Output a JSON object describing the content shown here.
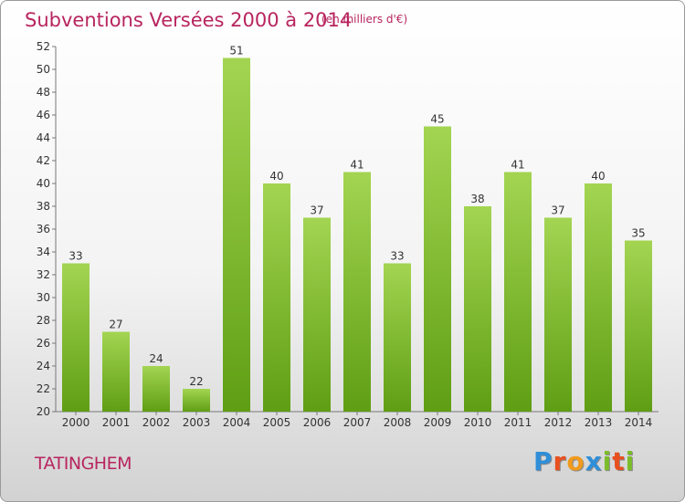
{
  "header": {
    "title": "Subventions Versées 2000 à 2014",
    "unit_note": "(en milliers d'€)"
  },
  "footer": {
    "commune": "TATINGHEM",
    "logo": [
      "P",
      "r",
      "o",
      "x",
      "i",
      "t",
      "i"
    ]
  },
  "colors": {
    "title": "#b8255f",
    "bar_light": "#a3d552",
    "bar_dark": "#5f9e14",
    "logo": [
      "#2f8fd8",
      "#e8501e",
      "#f09a1e",
      "#2f8fd8",
      "#7cbd2a",
      "#e8501e",
      "#7cbd2a"
    ]
  },
  "chart_data": {
    "type": "bar",
    "categories": [
      "2000",
      "2001",
      "2002",
      "2003",
      "2004",
      "2005",
      "2006",
      "2007",
      "2008",
      "2009",
      "2010",
      "2011",
      "2012",
      "2013",
      "2014"
    ],
    "values": [
      33,
      27,
      24,
      22,
      51,
      40,
      37,
      41,
      33,
      45,
      38,
      41,
      37,
      40,
      35
    ],
    "ylim": [
      20,
      52
    ],
    "yticks": [
      20,
      22,
      24,
      26,
      28,
      30,
      32,
      34,
      36,
      38,
      40,
      42,
      44,
      46,
      48,
      50,
      52
    ],
    "grid": false,
    "data_labels": true
  }
}
